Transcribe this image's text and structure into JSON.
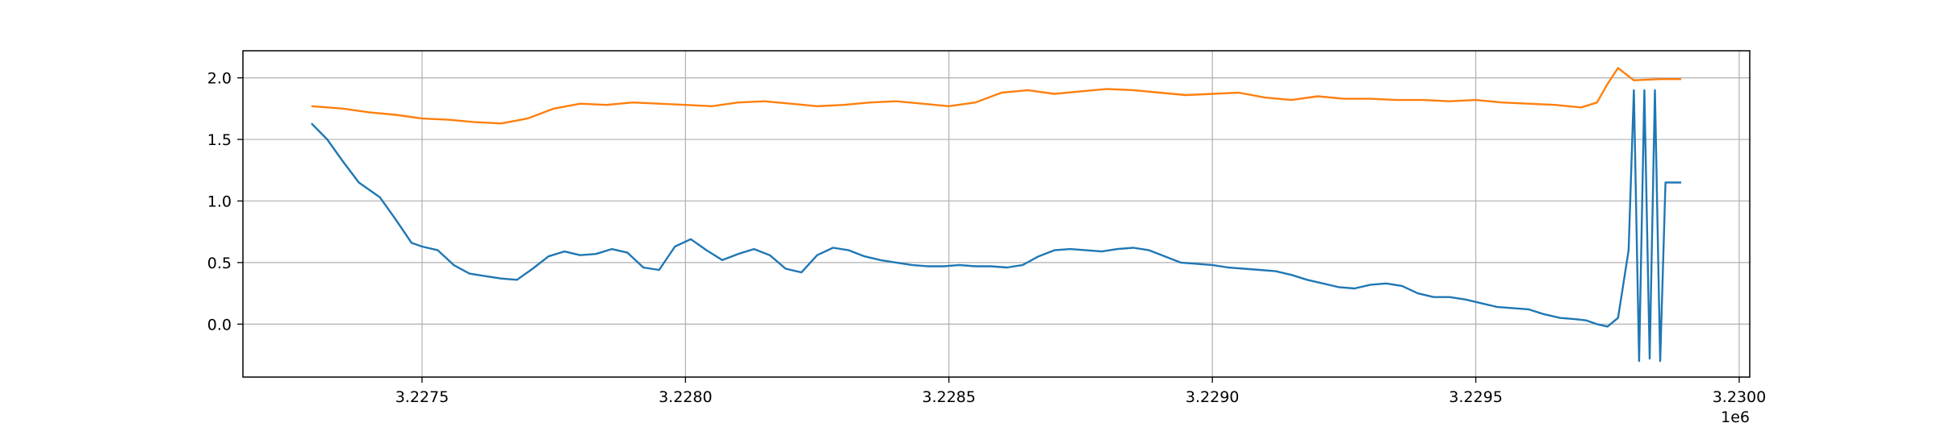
{
  "chart_data": {
    "type": "line",
    "title": "",
    "xlabel": "",
    "ylabel": "",
    "x_offset_label": "1e6",
    "xlim": [
      3.22716,
      3.23002
    ],
    "ylim": [
      -0.43,
      2.22
    ],
    "grid": true,
    "x_ticks": [
      3.2275,
      3.228,
      3.2285,
      3.229,
      3.2295,
      3.23
    ],
    "x_tick_labels": [
      "3.2275",
      "3.2280",
      "3.2285",
      "3.2290",
      "3.2295",
      "3.2300"
    ],
    "y_ticks": [
      0.0,
      0.5,
      1.0,
      1.5,
      2.0
    ],
    "y_tick_labels": [
      "0.0",
      "0.5",
      "1.0",
      "1.5",
      "2.0"
    ],
    "series": [
      {
        "color": "#1f77b4",
        "x": [
          3.22729,
          3.22732,
          3.22735,
          3.22738,
          3.22742,
          3.22745,
          3.22748,
          3.2275,
          3.22753,
          3.22756,
          3.22759,
          3.22762,
          3.22765,
          3.22768,
          3.22771,
          3.22774,
          3.22777,
          3.2278,
          3.22783,
          3.22786,
          3.22789,
          3.22792,
          3.22795,
          3.22798,
          3.22801,
          3.22804,
          3.22807,
          3.2281,
          3.22813,
          3.22816,
          3.22819,
          3.22822,
          3.22825,
          3.22828,
          3.22831,
          3.22834,
          3.22837,
          3.2284,
          3.22843,
          3.22846,
          3.22849,
          3.22852,
          3.22855,
          3.22858,
          3.22861,
          3.22864,
          3.22867,
          3.2287,
          3.22873,
          3.22876,
          3.22879,
          3.22882,
          3.22885,
          3.22888,
          3.22891,
          3.22894,
          3.22897,
          3.229,
          3.22903,
          3.22906,
          3.22909,
          3.22912,
          3.22915,
          3.22918,
          3.22921,
          3.22924,
          3.22927,
          3.2293,
          3.22933,
          3.22936,
          3.22939,
          3.22942,
          3.22945,
          3.22948,
          3.22951,
          3.22954,
          3.22957,
          3.2296,
          3.22963,
          3.22966,
          3.22969,
          3.22971,
          3.22973,
          3.22975,
          3.22977,
          3.22979,
          3.2298,
          3.22981,
          3.22982,
          3.22983,
          3.22984,
          3.22985,
          3.22986,
          3.22987,
          3.22988,
          3.22989
        ],
        "y": [
          1.63,
          1.5,
          1.32,
          1.15,
          1.03,
          0.85,
          0.66,
          0.63,
          0.6,
          0.48,
          0.41,
          0.39,
          0.37,
          0.36,
          0.45,
          0.55,
          0.59,
          0.56,
          0.57,
          0.61,
          0.58,
          0.46,
          0.44,
          0.63,
          0.69,
          0.6,
          0.52,
          0.57,
          0.61,
          0.56,
          0.45,
          0.42,
          0.56,
          0.62,
          0.6,
          0.55,
          0.52,
          0.5,
          0.48,
          0.47,
          0.47,
          0.48,
          0.47,
          0.47,
          0.46,
          0.48,
          0.55,
          0.6,
          0.61,
          0.6,
          0.59,
          0.61,
          0.62,
          0.6,
          0.55,
          0.5,
          0.49,
          0.48,
          0.46,
          0.45,
          0.44,
          0.43,
          0.4,
          0.36,
          0.33,
          0.3,
          0.29,
          0.32,
          0.33,
          0.31,
          0.25,
          0.22,
          0.22,
          0.2,
          0.17,
          0.14,
          0.13,
          0.12,
          0.08,
          0.05,
          0.04,
          0.03,
          0.0,
          -0.02,
          0.05,
          0.6,
          1.9,
          -0.3,
          1.9,
          -0.28,
          1.9,
          -0.3,
          1.15,
          1.15,
          1.15,
          1.15
        ]
      },
      {
        "color": "#ff7f0e",
        "x": [
          3.22729,
          3.22735,
          3.2274,
          3.22745,
          3.2275,
          3.22755,
          3.2276,
          3.22765,
          3.2277,
          3.22775,
          3.2278,
          3.22785,
          3.2279,
          3.22795,
          3.228,
          3.22805,
          3.2281,
          3.22815,
          3.2282,
          3.22825,
          3.2283,
          3.22835,
          3.2284,
          3.22845,
          3.2285,
          3.22855,
          3.2286,
          3.22865,
          3.2287,
          3.22875,
          3.2288,
          3.22885,
          3.2289,
          3.22895,
          3.229,
          3.22905,
          3.2291,
          3.22915,
          3.2292,
          3.22925,
          3.2293,
          3.22935,
          3.2294,
          3.22945,
          3.2295,
          3.22955,
          3.2296,
          3.22965,
          3.2297,
          3.22973,
          3.22975,
          3.22977,
          3.2298,
          3.22985,
          3.22989
        ],
        "y": [
          1.77,
          1.75,
          1.72,
          1.7,
          1.67,
          1.66,
          1.64,
          1.63,
          1.67,
          1.75,
          1.79,
          1.78,
          1.8,
          1.79,
          1.78,
          1.77,
          1.8,
          1.81,
          1.79,
          1.77,
          1.78,
          1.8,
          1.81,
          1.79,
          1.77,
          1.8,
          1.88,
          1.9,
          1.87,
          1.89,
          1.91,
          1.9,
          1.88,
          1.86,
          1.87,
          1.88,
          1.84,
          1.82,
          1.85,
          1.83,
          1.83,
          1.82,
          1.82,
          1.81,
          1.82,
          1.8,
          1.79,
          1.78,
          1.76,
          1.8,
          1.95,
          2.08,
          1.98,
          1.99,
          1.99
        ]
      }
    ]
  }
}
